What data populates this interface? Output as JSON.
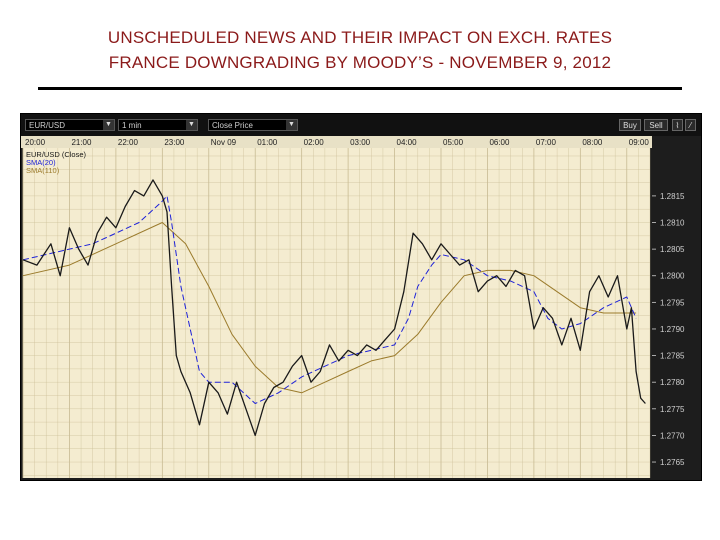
{
  "header": {
    "title_line1": "UNSCHEDULED NEWS AND THEIR IMPACT ON EXCH. RATES",
    "title_line2": "FRANCE DOWNGRADING BY MOODY’S -  NOVEMBER 9, 2012"
  },
  "toolbar": {
    "symbol_value": "EUR/USD",
    "interval_value": "1 min",
    "price_value": "Close Price",
    "buy_label": "Buy",
    "sell_label": "Sell"
  },
  "colors": {
    "title": "#8b1a1a",
    "plot_bg": "#f4ecd0",
    "grid": "#c8bb93",
    "price": "#1a1a1a",
    "sma20": "#1e22d8",
    "sma110": "#9b7b2c",
    "axis_bg": "#1d1d1d",
    "axis_text": "#cfcfcf"
  },
  "chart_data": {
    "type": "line",
    "title": "",
    "legend": [
      "EUR/USD (Close)",
      "SMA(20)",
      "SMA(110)"
    ],
    "legend_position": "top-left",
    "grid": true,
    "xlabel": "",
    "ylabel": "",
    "x_ticks": [
      "20:00",
      "21:00",
      "22:00",
      "23:00",
      "Nov 09",
      "01:00",
      "02:00",
      "03:00",
      "04:00",
      "05:00",
      "06:00",
      "07:00",
      "08:00",
      "09:00"
    ],
    "y_ticks": [
      1.2765,
      1.277,
      1.2775,
      1.278,
      1.2785,
      1.279,
      1.2795,
      1.28,
      1.2805,
      1.281,
      1.2815
    ],
    "y_tick_labels": [
      "1.2765",
      "1.2770",
      "1.2775",
      "1.2780",
      "1.2785",
      "1.2790",
      "1.2795",
      "1.2800",
      "1.2805",
      "1.2810",
      "1.2815"
    ],
    "xlim": [
      0,
      13.5
    ],
    "ylim": [
      1.2762,
      1.2824
    ],
    "series": [
      {
        "name": "EUR/USD (Close)",
        "x": [
          0,
          0.3,
          0.6,
          0.8,
          1.0,
          1.2,
          1.4,
          1.6,
          1.8,
          2.0,
          2.2,
          2.4,
          2.6,
          2.8,
          3.0,
          3.1,
          3.2,
          3.3,
          3.4,
          3.6,
          3.8,
          4.0,
          4.2,
          4.4,
          4.6,
          4.8,
          5.0,
          5.2,
          5.4,
          5.6,
          5.8,
          6.0,
          6.2,
          6.4,
          6.6,
          6.8,
          7.0,
          7.2,
          7.4,
          7.6,
          7.8,
          8.0,
          8.2,
          8.4,
          8.6,
          8.8,
          9.0,
          9.2,
          9.4,
          9.6,
          9.8,
          10.0,
          10.2,
          10.4,
          10.6,
          10.8,
          11.0,
          11.2,
          11.4,
          11.6,
          11.8,
          12.0,
          12.2,
          12.4,
          12.6,
          12.8,
          13.0,
          13.1,
          13.2,
          13.3,
          13.4
        ],
        "y": [
          1.2803,
          1.2802,
          1.2806,
          1.28,
          1.2809,
          1.2805,
          1.2802,
          1.2808,
          1.2811,
          1.2809,
          1.2813,
          1.2816,
          1.2815,
          1.2818,
          1.2815,
          1.2812,
          1.2798,
          1.2785,
          1.2782,
          1.2778,
          1.2772,
          1.278,
          1.2778,
          1.2774,
          1.278,
          1.2775,
          1.277,
          1.2776,
          1.2779,
          1.278,
          1.2783,
          1.2785,
          1.278,
          1.2782,
          1.2787,
          1.2784,
          1.2786,
          1.2785,
          1.2787,
          1.2786,
          1.2788,
          1.279,
          1.2797,
          1.2808,
          1.2806,
          1.2803,
          1.2806,
          1.2804,
          1.2802,
          1.2803,
          1.2797,
          1.2799,
          1.28,
          1.2798,
          1.2801,
          1.28,
          1.279,
          1.2794,
          1.2792,
          1.2787,
          1.2792,
          1.2786,
          1.2797,
          1.28,
          1.2796,
          1.28,
          1.279,
          1.2794,
          1.2782,
          1.2777,
          1.2776
        ]
      },
      {
        "name": "SMA(20)",
        "x": [
          0,
          0.5,
          1.0,
          1.5,
          2.0,
          2.5,
          3.0,
          3.1,
          3.2,
          3.4,
          3.6,
          3.8,
          4.0,
          4.5,
          5.0,
          5.5,
          6.0,
          6.5,
          7.0,
          7.5,
          8.0,
          8.3,
          8.5,
          8.8,
          9.0,
          9.5,
          10.0,
          10.5,
          11.0,
          11.3,
          11.6,
          12.0,
          12.5,
          13.0,
          13.2
        ],
        "y": [
          1.2803,
          1.2804,
          1.2805,
          1.2806,
          1.2808,
          1.281,
          1.2814,
          1.2815,
          1.281,
          1.2798,
          1.279,
          1.2782,
          1.278,
          1.278,
          1.2776,
          1.2778,
          1.2781,
          1.2783,
          1.2785,
          1.2786,
          1.2787,
          1.2792,
          1.2798,
          1.2802,
          1.2804,
          1.2803,
          1.28,
          1.2799,
          1.2797,
          1.2792,
          1.279,
          1.2791,
          1.2794,
          1.2796,
          1.2792
        ]
      },
      {
        "name": "SMA(110)",
        "x": [
          0,
          1.0,
          2.0,
          3.0,
          3.5,
          4.0,
          4.5,
          5.0,
          5.5,
          6.0,
          6.5,
          7.0,
          7.5,
          8.0,
          8.5,
          9.0,
          9.5,
          10.0,
          10.5,
          11.0,
          11.5,
          12.0,
          12.5,
          13.0,
          13.2
        ],
        "y": [
          1.28,
          1.2802,
          1.2806,
          1.281,
          1.2806,
          1.2798,
          1.2789,
          1.2783,
          1.2779,
          1.2778,
          1.278,
          1.2782,
          1.2784,
          1.2785,
          1.2789,
          1.2795,
          1.28,
          1.2801,
          1.2801,
          1.28,
          1.2797,
          1.2794,
          1.2793,
          1.2793,
          1.2793
        ]
      }
    ]
  }
}
